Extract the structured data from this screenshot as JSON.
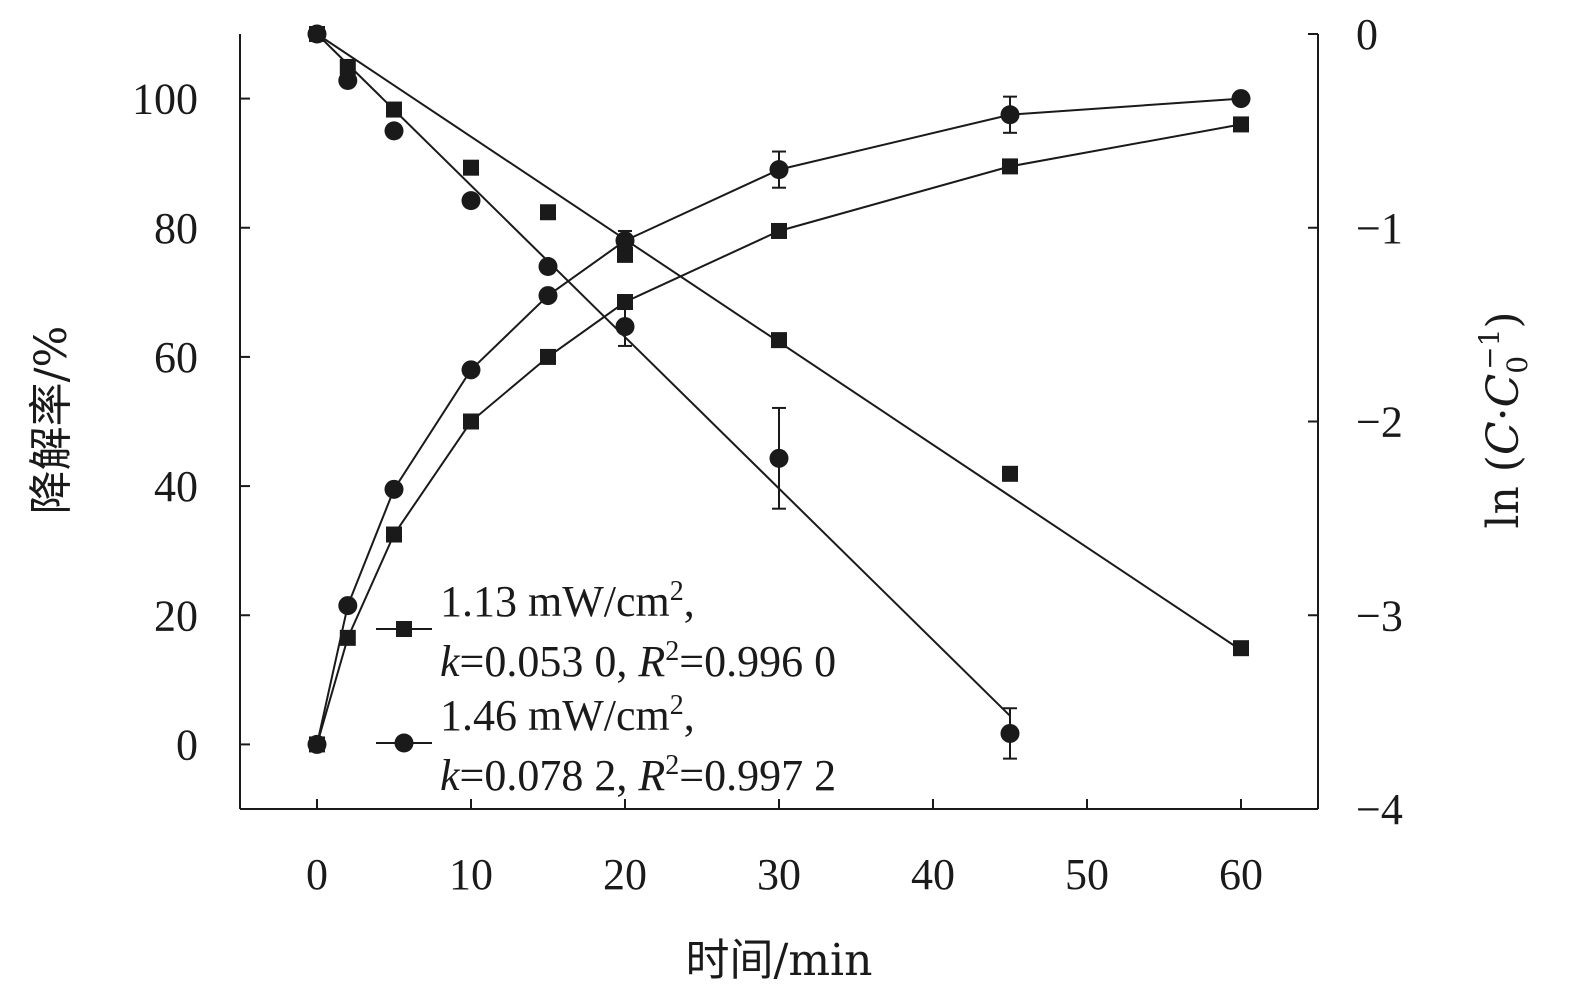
{
  "chart_data": {
    "type": "scatter",
    "xlabel": "时间/min",
    "ylabel_left": "降解率/%",
    "ylabel_right_parts": [
      "ln (",
      "C",
      "·",
      "C",
      "0",
      "−1",
      ")"
    ],
    "x_ticks": [
      0,
      10,
      20,
      30,
      40,
      50,
      60
    ],
    "x_tick_labels": [
      "0",
      "10",
      "20",
      "30",
      "40",
      "50",
      "60"
    ],
    "xlim": [
      -5,
      65
    ],
    "y_left_ticks": [
      0,
      20,
      40,
      60,
      80,
      100
    ],
    "y_left_tick_labels": [
      "0",
      "20",
      "40",
      "60",
      "80",
      "100"
    ],
    "ylim_left": [
      -10,
      110
    ],
    "y_right_ticks": [
      0,
      -1,
      -2,
      -3,
      -4
    ],
    "y_right_tick_labels": [
      "0",
      "−1",
      "−2",
      "−3",
      "−4"
    ],
    "ylim_right": [
      -4,
      0
    ],
    "grid": false,
    "legend_position": "bottom-left inside",
    "series": [
      {
        "name": "1.13 mW/cm², k=0.053 0, R²=0.996 0",
        "legend_line1": [
          "1.13 mW/cm",
          "2",
          ","
        ],
        "legend_line2": [
          "k",
          "=0.053 0, ",
          "R",
          "2",
          "=0.996 0"
        ],
        "marker": "square",
        "axis": "left",
        "kind": "degradation",
        "x": [
          0,
          2,
          5,
          10,
          15,
          20,
          30,
          45,
          60
        ],
        "y": [
          0,
          16.5,
          32.5,
          50,
          60,
          68.5,
          79.5,
          89.5,
          96
        ]
      },
      {
        "name": "1.46 mW/cm², k=0.078 2, R²=0.997 2",
        "legend_line1": [
          "1.46 mW/cm",
          "2",
          ","
        ],
        "legend_line2": [
          "k",
          "=0.078 2, ",
          "R",
          "2",
          "=0.997 2"
        ],
        "marker": "circle",
        "axis": "left",
        "kind": "degradation",
        "x": [
          0,
          2,
          5,
          10,
          15,
          20,
          30,
          45,
          60
        ],
        "y": [
          0,
          21.5,
          39.5,
          58,
          69.5,
          78,
          89,
          97.5,
          100
        ],
        "err": [
          0,
          0,
          0,
          0,
          0,
          1.5,
          2.8,
          2.8,
          0
        ]
      },
      {
        "marker": "square",
        "axis": "right",
        "kind": "ln",
        "x": [
          0,
          2,
          5,
          10,
          15,
          20,
          30,
          45,
          60
        ],
        "y": [
          0,
          -0.17,
          -0.39,
          -0.69,
          -0.92,
          -1.14,
          -1.58,
          -2.27,
          -3.17
        ],
        "fit": {
          "slope": -0.053,
          "intercept": 0
        }
      },
      {
        "marker": "circle",
        "axis": "right",
        "kind": "ln",
        "x": [
          0,
          2,
          5,
          10,
          15,
          20,
          30,
          45,
          60
        ],
        "y": [
          0,
          -0.24,
          -0.5,
          -0.86,
          -1.2,
          -1.51,
          -2.19,
          -3.61,
          null
        ],
        "err": [
          0,
          0,
          0,
          0,
          0,
          0.1,
          0.26,
          0.13,
          0
        ],
        "fit": {
          "slope": -0.0782,
          "intercept": 0
        }
      }
    ]
  }
}
